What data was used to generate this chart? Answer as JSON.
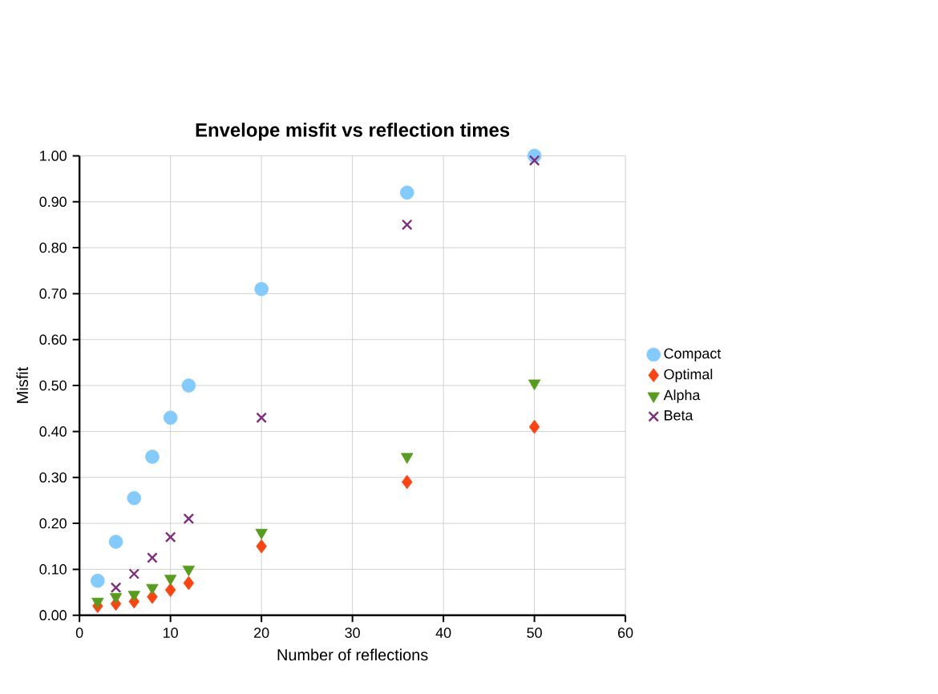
{
  "chart_data": {
    "type": "scatter",
    "title": "Envelope misfit vs reflection times",
    "xlabel": "Number of reflections",
    "ylabel": "Misfit",
    "series": [
      {
        "name": "Compact",
        "color": "#83caff",
        "marker": "circle",
        "x": [
          2,
          4,
          6,
          8,
          10,
          12,
          20,
          36,
          50
        ],
        "values": [
          0.075,
          0.16,
          0.255,
          0.345,
          0.43,
          0.5,
          0.71,
          0.92,
          1.0
        ]
      },
      {
        "name": "Optimal",
        "color": "#ff420e",
        "marker": "diamond",
        "x": [
          2,
          4,
          6,
          8,
          10,
          12,
          20,
          36,
          50
        ],
        "values": [
          0.02,
          0.025,
          0.03,
          0.04,
          0.055,
          0.07,
          0.15,
          0.29,
          0.41
        ]
      },
      {
        "name": "Alpha",
        "color": "#579d1c",
        "marker": "triangle",
        "x": [
          2,
          4,
          6,
          8,
          10,
          12,
          20,
          36,
          50
        ],
        "values": [
          0.03,
          0.04,
          0.045,
          0.06,
          0.08,
          0.1,
          0.18,
          0.345,
          0.505
        ]
      },
      {
        "name": "Beta",
        "color": "#7e2f7b",
        "marker": "cross",
        "x": [
          4,
          6,
          8,
          10,
          12,
          20,
          36,
          50
        ],
        "values": [
          0.06,
          0.09,
          0.125,
          0.17,
          0.21,
          0.43,
          0.85,
          0.99
        ]
      }
    ],
    "xlim": [
      0,
      60
    ],
    "xticks": [
      0,
      10,
      20,
      30,
      40,
      50,
      60
    ],
    "ylim": [
      0,
      1
    ],
    "yticks": [
      {
        "value": 0,
        "label": "0.00"
      },
      {
        "value": 0.1,
        "label": "0.10"
      },
      {
        "value": 0.2,
        "label": "0.20"
      },
      {
        "value": 0.3,
        "label": "0.30"
      },
      {
        "value": 0.4,
        "label": "0.40"
      },
      {
        "value": 0.5,
        "label": "0.50"
      },
      {
        "value": 0.6,
        "label": "0.60"
      },
      {
        "value": 0.7,
        "label": "0.70"
      },
      {
        "value": 0.8,
        "label": "0.80"
      },
      {
        "value": 0.9,
        "label": "0.90"
      },
      {
        "value": 1,
        "label": "1.00"
      }
    ],
    "grid": true,
    "legend": "right"
  }
}
